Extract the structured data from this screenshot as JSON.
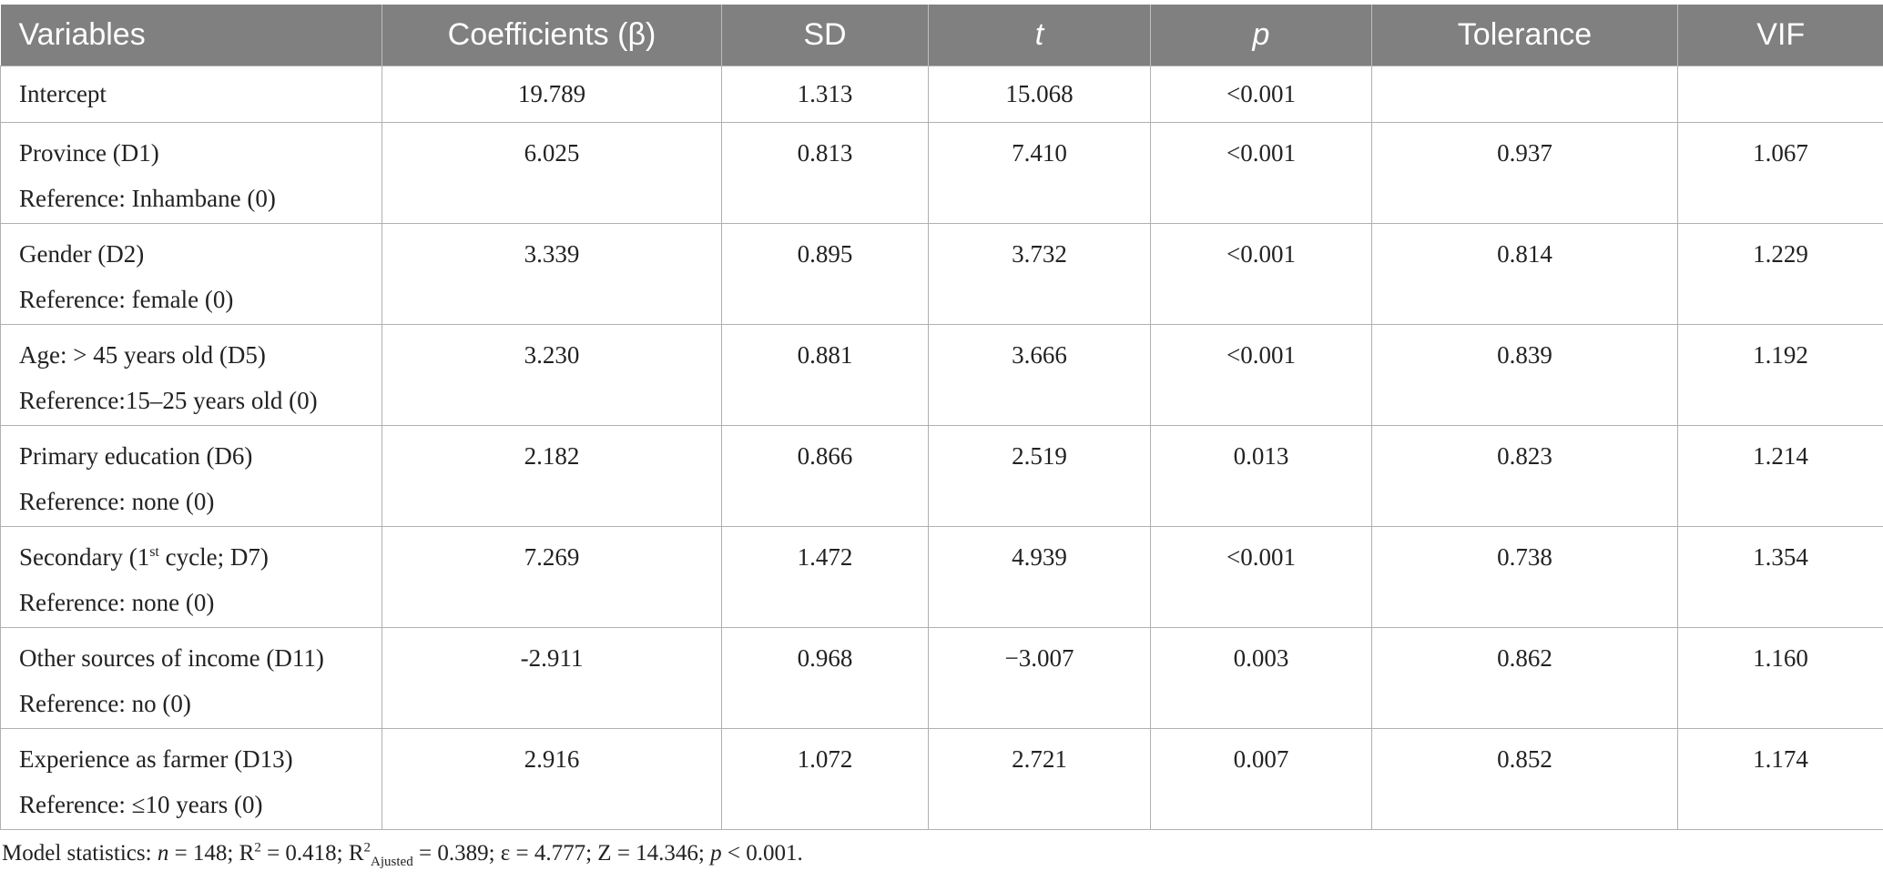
{
  "table": {
    "headers": [
      "Variables",
      "Coefficients (β)",
      "SD",
      "t",
      "p",
      "Tolerance",
      "VIF"
    ],
    "rows": [
      {
        "variable": "Intercept",
        "reference": "",
        "coef": "19.789",
        "sd": "1.313",
        "t": "15.068",
        "p": "<0.001",
        "tolerance": "",
        "vif": ""
      },
      {
        "variable": "Province (D1)",
        "reference": "Reference: Inhambane (0)",
        "coef": "6.025",
        "sd": "0.813",
        "t": "7.410",
        "p": "<0.001",
        "tolerance": "0.937",
        "vif": "1.067"
      },
      {
        "variable": "Gender (D2)",
        "reference": "Reference: female (0)",
        "coef": "3.339",
        "sd": "0.895",
        "t": "3.732",
        "p": "<0.001",
        "tolerance": "0.814",
        "vif": "1.229"
      },
      {
        "variable": "Age: > 45 years old (D5)",
        "reference": "Reference:15–25 years old (0)",
        "coef": "3.230",
        "sd": "0.881",
        "t": "3.666",
        "p": "<0.001",
        "tolerance": "0.839",
        "vif": "1.192"
      },
      {
        "variable": "Primary education (D6)",
        "reference": "Reference: none (0)",
        "coef": "2.182",
        "sd": "0.866",
        "t": "2.519",
        "p": "0.013",
        "tolerance": "0.823",
        "vif": "1.214"
      },
      {
        "variable_pre": "Secondary (1",
        "variable_sup": "st",
        "variable_post": " cycle; D7)",
        "reference": "Reference: none (0)",
        "coef": "7.269",
        "sd": "1.472",
        "t": "4.939",
        "p": "<0.001",
        "tolerance": "0.738",
        "vif": "1.354"
      },
      {
        "variable": "Other sources of income (D11)",
        "reference": "Reference: no (0)",
        "coef": "-2.911",
        "sd": "0.968",
        "t": "−3.007",
        "p": "0.003",
        "tolerance": "0.862",
        "vif": "1.160"
      },
      {
        "variable": "Experience as farmer (D13)",
        "reference": "Reference: ≤10 years (0)",
        "coef": "2.916",
        "sd": "1.072",
        "t": "2.721",
        "p": "0.007",
        "tolerance": "0.852",
        "vif": "1.174"
      }
    ]
  },
  "footnote": {
    "prefix": "Model statistics: ",
    "n_label": "n",
    "n_value": " = 148; R",
    "r2_sup": "2",
    "r2_value": " = 0.418; R",
    "radj_sup": "2",
    "radj_sub": "Ajusted",
    "radj_value": " = 0.389; ε = 4.777; Z = 14.346; ",
    "p_label": "p",
    "p_value": " < 0.001."
  }
}
